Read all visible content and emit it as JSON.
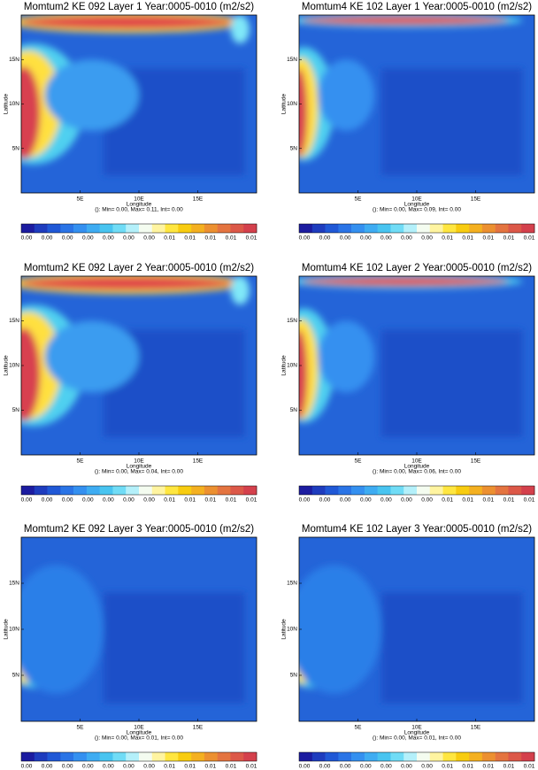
{
  "panels": [
    {
      "title": "Momtum2 KE 092 Layer 1 Year:0005-0010 (m2/s2)",
      "stats": "(): Min= 0.00, Max= 0.11, Int= 0.00",
      "colorbar_labels": [
        "0.00",
        "0.00",
        "0.00",
        "0.00",
        "0.00",
        "0.00",
        "0.00",
        "0.01",
        "0.01",
        "0.01",
        "0.01",
        "0.01"
      ]
    },
    {
      "title": "Momtum4 KE 102  Layer 1 Year:0005-0010 (m2/s2)",
      "stats": "(): Min= 0.00, Max= 0.09, Int= 0.00",
      "colorbar_labels": [
        "0.00",
        "0.00",
        "0.00",
        "0.00",
        "0.00",
        "0.00",
        "0.00",
        "0.01",
        "0.01",
        "0.01",
        "0.01",
        "0.01"
      ]
    },
    {
      "title": "Momtum2 KE 092 Layer 2 Year:0005-0010 (m2/s2)",
      "stats": "(): Min= 0.00, Max= 0.04, Int= 0.00",
      "colorbar_labels": [
        "0.00",
        "0.00",
        "0.00",
        "0.00",
        "0.00",
        "0.00",
        "0.00",
        "0.01",
        "0.01",
        "0.01",
        "0.01",
        "0.01"
      ]
    },
    {
      "title": "Momtum4 KE 102 Layer 2 Year:0005-0010 (m2/s2)",
      "stats": "(): Min= 0.00, Max= 0.06, Int= 0.00",
      "colorbar_labels": [
        "0.00",
        "0.00",
        "0.00",
        "0.00",
        "0.00",
        "0.00",
        "0.00",
        "0.01",
        "0.01",
        "0.01",
        "0.01",
        "0.01"
      ]
    },
    {
      "title": "Momtum2 KE 092 Layer 3 Year:0005-0010 (m2/s2)",
      "stats": "(): Min= 0.00, Max= 0.01, Int= 0.00",
      "colorbar_labels": [
        "0.00",
        "0.00",
        "0.00",
        "0.00",
        "0.00",
        "0.00",
        "0.00",
        "0.01",
        "0.01",
        "0.01",
        "0.01",
        "0.01"
      ]
    },
    {
      "title": "Momtum4 KE 102 Layer 3 Year:0005-0010 (m2/s2)",
      "stats": "(): Min= 0.00, Max= 0.01, Int= 0.00",
      "colorbar_labels": [
        "0.00",
        "0.00",
        "0.00",
        "0.00",
        "0.00",
        "0.00",
        "0.00",
        "0.01",
        "0.01",
        "0.01",
        "0.01",
        "0.01"
      ]
    }
  ],
  "x_label": "Longitude",
  "y_label": "Latitude",
  "xlim": [
    0,
    20
  ],
  "ylim": [
    0,
    20
  ],
  "xticks": [
    {
      "value": 5,
      "label": "5E"
    },
    {
      "value": 10,
      "label": "10E"
    },
    {
      "value": 15,
      "label": "15E"
    }
  ],
  "yticks": [
    {
      "value": 5,
      "label": "5N"
    },
    {
      "value": 10,
      "label": "10N"
    },
    {
      "value": 15,
      "label": "15N"
    }
  ]
}
